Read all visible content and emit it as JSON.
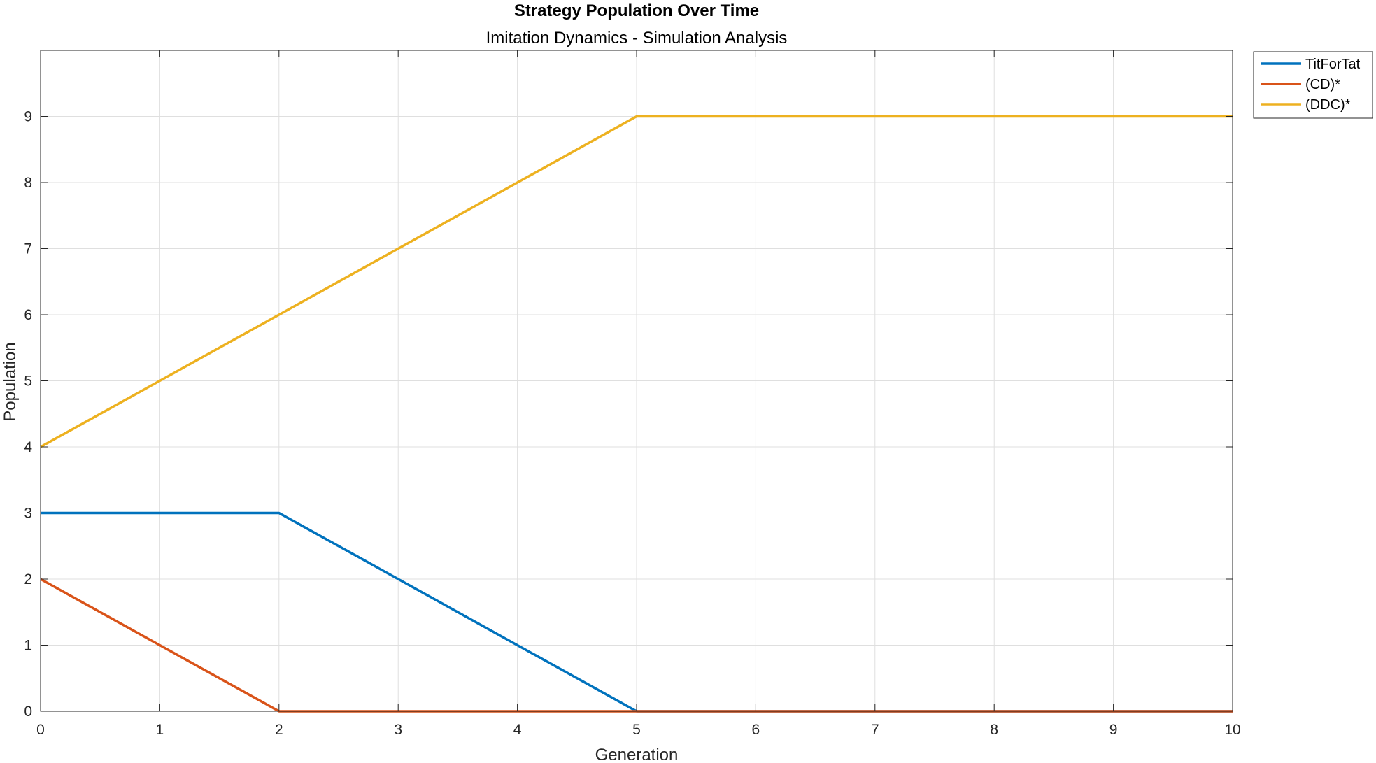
{
  "chart_data": {
    "type": "line",
    "title": "Strategy Population Over Time",
    "subtitle": "Imitation Dynamics - Simulation Analysis",
    "xlabel": "Generation",
    "ylabel": "Population",
    "xlim": [
      0,
      10
    ],
    "ylim": [
      0,
      10
    ],
    "x_ticks": [
      0,
      1,
      2,
      3,
      4,
      5,
      6,
      7,
      8,
      9,
      10
    ],
    "y_ticks": [
      0,
      1,
      2,
      3,
      4,
      5,
      6,
      7,
      8,
      9
    ],
    "grid": true,
    "legend_position": "outside-top-right",
    "x": [
      0,
      1,
      2,
      3,
      4,
      5,
      6,
      7,
      8,
      9,
      10
    ],
    "series": [
      {
        "name": "TitForTat",
        "color": "#0072BD",
        "values": [
          3,
          3,
          3,
          2,
          1,
          0,
          0,
          0,
          0,
          0,
          0
        ]
      },
      {
        "name": "(CD)*",
        "color": "#D95319",
        "values": [
          2,
          1,
          0,
          0,
          0,
          0,
          0,
          0,
          0,
          0,
          0
        ]
      },
      {
        "name": "(DDC)*",
        "color": "#EDB120",
        "values": [
          4,
          5,
          6,
          7,
          8,
          9,
          9,
          9,
          9,
          9,
          9
        ]
      }
    ]
  }
}
